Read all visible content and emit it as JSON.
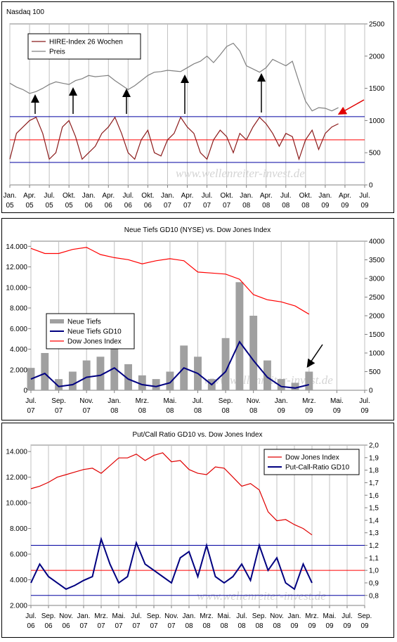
{
  "charts": [
    {
      "type": "line",
      "title": "Nasdaq 100",
      "watermark": "www.wellenreiter-invest.de",
      "y_axis_position": "right",
      "grid": "x",
      "legend": "upper left",
      "x": [
        "2005-01",
        "2005-02",
        "2005-03",
        "2005-04",
        "2005-05",
        "2005-06",
        "2005-07",
        "2005-08",
        "2005-09",
        "2005-10",
        "2005-11",
        "2005-12",
        "2006-01",
        "2006-02",
        "2006-03",
        "2006-04",
        "2006-05",
        "2006-06",
        "2006-07",
        "2006-08",
        "2006-09",
        "2006-10",
        "2006-11",
        "2006-12",
        "2007-01",
        "2007-02",
        "2007-03",
        "2007-04",
        "2007-05",
        "2007-06",
        "2007-07",
        "2007-08",
        "2007-09",
        "2007-10",
        "2007-11",
        "2007-12",
        "2008-01",
        "2008-02",
        "2008-03",
        "2008-04",
        "2008-05",
        "2008-06",
        "2008-07",
        "2008-08",
        "2008-09",
        "2008-10",
        "2008-11",
        "2008-12",
        "2009-01",
        "2009-02",
        "2009-03"
      ],
      "xlim": [
        "2005-01",
        "2009-07"
      ],
      "xticks": [
        {
          "value": "2005-01",
          "label": "Jan. 05"
        },
        {
          "value": "2005-04",
          "label": "Apr. 05"
        },
        {
          "value": "2005-07",
          "label": "Jul. 05"
        },
        {
          "value": "2005-10",
          "label": "Okt. 05"
        },
        {
          "value": "2006-01",
          "label": "Jan. 06"
        },
        {
          "value": "2006-04",
          "label": "Apr. 06"
        },
        {
          "value": "2006-07",
          "label": "Jul. 06"
        },
        {
          "value": "2006-10",
          "label": "Okt. 06"
        },
        {
          "value": "2007-01",
          "label": "Jan. 07"
        },
        {
          "value": "2007-04",
          "label": "Apr. 07"
        },
        {
          "value": "2007-07",
          "label": "Jul. 07"
        },
        {
          "value": "2007-10",
          "label": "Okt. 07"
        },
        {
          "value": "2008-01",
          "label": "Jan. 08"
        },
        {
          "value": "2008-04",
          "label": "Apr. 08"
        },
        {
          "value": "2008-07",
          "label": "Jul. 08"
        },
        {
          "value": "2008-10",
          "label": "Okt. 08"
        },
        {
          "value": "2009-01",
          "label": "Jan. 09"
        },
        {
          "value": "2009-04",
          "label": "Apr. 09"
        },
        {
          "value": "2009-07",
          "label": "Jul. 09"
        }
      ],
      "ylim": [
        0,
        2500
      ],
      "yticks": [
        0,
        500,
        1000,
        1500,
        2000,
        2500
      ],
      "hlines": [
        {
          "value": 1060,
          "color": "#0000a0"
        },
        {
          "value": 700,
          "color": "#ff0000"
        },
        {
          "value": 350,
          "color": "#0000a0"
        }
      ],
      "series": [
        {
          "name": "HIRE-Index 26 Wochen",
          "color": "#8b1a1a",
          "values": [
            400,
            800,
            900,
            1000,
            1050,
            800,
            400,
            500,
            900,
            1000,
            750,
            400,
            500,
            600,
            800,
            900,
            1050,
            800,
            500,
            400,
            700,
            850,
            500,
            450,
            700,
            800,
            1050,
            900,
            800,
            500,
            400,
            700,
            850,
            750,
            500,
            800,
            700,
            900,
            1050,
            950,
            800,
            600,
            800,
            750,
            400,
            700,
            850,
            550,
            800,
            900,
            950
          ]
        },
        {
          "name": "Preis",
          "color": "#808080",
          "values": [
            1580,
            1520,
            1480,
            1420,
            1450,
            1500,
            1560,
            1600,
            1580,
            1560,
            1620,
            1650,
            1700,
            1680,
            1690,
            1700,
            1620,
            1550,
            1480,
            1540,
            1620,
            1700,
            1750,
            1760,
            1780,
            1770,
            1760,
            1820,
            1880,
            1920,
            2000,
            1900,
            2020,
            2150,
            2200,
            2080,
            1850,
            1800,
            1750,
            1820,
            1950,
            1900,
            1850,
            1920,
            1600,
            1300,
            1150,
            1200,
            1190,
            1150,
            1200
          ]
        }
      ]
    },
    {
      "type": "line",
      "title": "Neue Tiefs GD10 (NYSE) vs. Dow Jones Index",
      "watermark": "www.wellenreiter-invest.de",
      "y_axis_position": "left",
      "grid": "x",
      "legend": "center left",
      "x": [
        "2007-07",
        "2007-08",
        "2007-09",
        "2007-10",
        "2007-11",
        "2007-12",
        "2008-01",
        "2008-02",
        "2008-03",
        "2008-04",
        "2008-05",
        "2008-06",
        "2008-07",
        "2008-08",
        "2008-09",
        "2008-10",
        "2008-11",
        "2008-12",
        "2009-01",
        "2009-02",
        "2009-03"
      ],
      "xlim": [
        "2007-07",
        "2009-07"
      ],
      "xticks": [
        {
          "value": "2007-07",
          "label": "Jul. 07"
        },
        {
          "value": "2007-09",
          "label": "Sep. 07"
        },
        {
          "value": "2007-11",
          "label": "Nov. 07"
        },
        {
          "value": "2008-01",
          "label": "Jan. 08"
        },
        {
          "value": "2008-03",
          "label": "Mrz. 08"
        },
        {
          "value": "2008-05",
          "label": "Mai. 08"
        },
        {
          "value": "2008-07",
          "label": "Jul. 08"
        },
        {
          "value": "2008-09",
          "label": "Sep. 08"
        },
        {
          "value": "2008-11",
          "label": "Nov. 08"
        },
        {
          "value": "2009-01",
          "label": "Jan. 09"
        },
        {
          "value": "2009-03",
          "label": "Mrz. 09"
        },
        {
          "value": "2009-05",
          "label": "Mai. 09"
        },
        {
          "value": "2009-07",
          "label": "Jul. 09"
        }
      ],
      "ylim": [
        0,
        14500
      ],
      "yticks": [
        0,
        {
          "value": 2000,
          "label": "2.000"
        },
        {
          "value": 4000,
          "label": "4.000"
        },
        {
          "value": 6000,
          "label": "6.000"
        },
        {
          "value": 8000,
          "label": "8.000"
        },
        {
          "value": 10000,
          "label": "10.000"
        },
        {
          "value": 12000,
          "label": "12.000"
        },
        {
          "value": 14000,
          "label": "14.000"
        }
      ],
      "y2lim": [
        0,
        4000
      ],
      "y2ticks": [
        0,
        500,
        1000,
        1500,
        2000,
        2500,
        3000,
        3500,
        4000
      ],
      "series": [
        {
          "name": "Neue Tiefs",
          "color": "#a0a0a0",
          "kind": "bar",
          "axis": "y2",
          "values": [
            600,
            1000,
            300,
            500,
            800,
            900,
            1700,
            700,
            400,
            300,
            500,
            1200,
            900,
            300,
            1400,
            2900,
            2000,
            800,
            300,
            200,
            500
          ]
        },
        {
          "name": "Neue Tiefs GD10",
          "color": "#000080",
          "axis": "y2",
          "values": [
            300,
            450,
            100,
            150,
            350,
            400,
            600,
            300,
            150,
            100,
            200,
            600,
            450,
            150,
            500,
            1300,
            800,
            350,
            100,
            60,
            150
          ]
        },
        {
          "name": "Dow Jones Index",
          "color": "#ff0000",
          "values": [
            13800,
            13300,
            13300,
            13700,
            13900,
            13200,
            12900,
            12700,
            12300,
            12600,
            12800,
            12600,
            11500,
            11400,
            11300,
            10800,
            9300,
            8800,
            8600,
            8200,
            7400
          ]
        }
      ]
    },
    {
      "type": "line",
      "title": "Put/Call Ratio GD10 vs. Dow Jones Index",
      "watermark": "www.wellenreiter-invest.de",
      "y_axis_position": "left",
      "grid": "x",
      "legend": "upper right",
      "x": [
        "2006-07",
        "2006-08",
        "2006-09",
        "2006-10",
        "2006-11",
        "2006-12",
        "2007-01",
        "2007-02",
        "2007-03",
        "2007-04",
        "2007-05",
        "2007-06",
        "2007-07",
        "2007-08",
        "2007-09",
        "2007-10",
        "2007-11",
        "2007-12",
        "2008-01",
        "2008-02",
        "2008-03",
        "2008-04",
        "2008-05",
        "2008-06",
        "2008-07",
        "2008-08",
        "2008-09",
        "2008-10",
        "2008-11",
        "2008-12",
        "2009-01",
        "2009-02",
        "2009-03"
      ],
      "xlim": [
        "2006-07",
        "2009-09"
      ],
      "xticks": [
        {
          "value": "2006-07",
          "label": "Jul. 06"
        },
        {
          "value": "2006-09",
          "label": "Sep. 06"
        },
        {
          "value": "2006-11",
          "label": "Nov. 06"
        },
        {
          "value": "2007-01",
          "label": "Jan. 07"
        },
        {
          "value": "2007-03",
          "label": "Mrz. 07"
        },
        {
          "value": "2007-05",
          "label": "Mai. 07"
        },
        {
          "value": "2007-07",
          "label": "Jul. 07"
        },
        {
          "value": "2007-09",
          "label": "Sep. 07"
        },
        {
          "value": "2007-11",
          "label": "Nov. 07"
        },
        {
          "value": "2008-01",
          "label": "Jan. 08"
        },
        {
          "value": "2008-03",
          "label": "Mrz. 08"
        },
        {
          "value": "2008-05",
          "label": "Mai. 08"
        },
        {
          "value": "2008-07",
          "label": "Jul. 08"
        },
        {
          "value": "2008-09",
          "label": "Sep. 08"
        },
        {
          "value": "2008-11",
          "label": "Nov. 08"
        },
        {
          "value": "2009-01",
          "label": "Jan. 09"
        },
        {
          "value": "2009-03",
          "label": "Mrz. 09"
        },
        {
          "value": "2009-05",
          "label": "Mai. 09"
        },
        {
          "value": "2009-07",
          "label": "Jul. 09"
        },
        {
          "value": "2009-09",
          "label": "Sep. 09"
        }
      ],
      "ylim": [
        2000,
        14500
      ],
      "yticks": [
        {
          "value": 2000,
          "label": "2.000"
        },
        {
          "value": 4000,
          "label": "4.000"
        },
        {
          "value": 6000,
          "label": "6.000"
        },
        {
          "value": 8000,
          "label": "8.000"
        },
        {
          "value": 10000,
          "label": "10.000"
        },
        {
          "value": 12000,
          "label": "12.000"
        },
        {
          "value": 14000,
          "label": "14.000"
        }
      ],
      "y2lim": [
        0.72,
        2.0
      ],
      "y2ticks": [
        {
          "value": 0.8,
          "label": "0,8"
        },
        {
          "value": 0.9,
          "label": "0,9"
        },
        {
          "value": 1.0,
          "label": "1,0"
        },
        {
          "value": 1.1,
          "label": "1,1"
        },
        {
          "value": 1.2,
          "label": "1,2"
        },
        {
          "value": 1.3,
          "label": "1,3"
        },
        {
          "value": 1.4,
          "label": "1,4"
        },
        {
          "value": 1.5,
          "label": "1,5"
        },
        {
          "value": 1.6,
          "label": "1,6"
        },
        {
          "value": 1.7,
          "label": "1,7"
        },
        {
          "value": 1.8,
          "label": "1,8"
        },
        {
          "value": 1.9,
          "label": "1,9"
        },
        {
          "value": 2.0,
          "label": "2,0"
        }
      ],
      "hlines": [
        {
          "value": 1.2,
          "color": "#0000a0",
          "axis": "y2"
        },
        {
          "value": 1.0,
          "color": "#ff0000",
          "axis": "y2"
        },
        {
          "value": 0.8,
          "color": "#0000a0",
          "axis": "y2"
        }
      ],
      "series": [
        {
          "name": "Dow Jones Index",
          "color": "#e00000",
          "values": [
            11100,
            11300,
            11600,
            12000,
            12200,
            12400,
            12600,
            12700,
            12300,
            12900,
            13500,
            13500,
            13800,
            13300,
            13700,
            13900,
            13200,
            13300,
            12600,
            12300,
            12200,
            12800,
            12700,
            12000,
            11300,
            11500,
            11000,
            9300,
            8600,
            8700,
            8300,
            8000,
            7500
          ]
        },
        {
          "name": "Put-Call-Ratio GD10",
          "color": "#000080",
          "axis": "y2",
          "values": [
            0.9,
            1.05,
            0.95,
            0.9,
            0.85,
            0.88,
            0.92,
            0.95,
            1.25,
            1.05,
            0.9,
            0.95,
            1.22,
            1.05,
            1.0,
            0.95,
            0.9,
            1.1,
            1.15,
            0.95,
            1.2,
            0.95,
            0.9,
            0.95,
            1.05,
            0.92,
            1.2,
            1.0,
            1.1,
            0.9,
            0.85,
            1.05,
            0.9
          ]
        }
      ]
    }
  ]
}
